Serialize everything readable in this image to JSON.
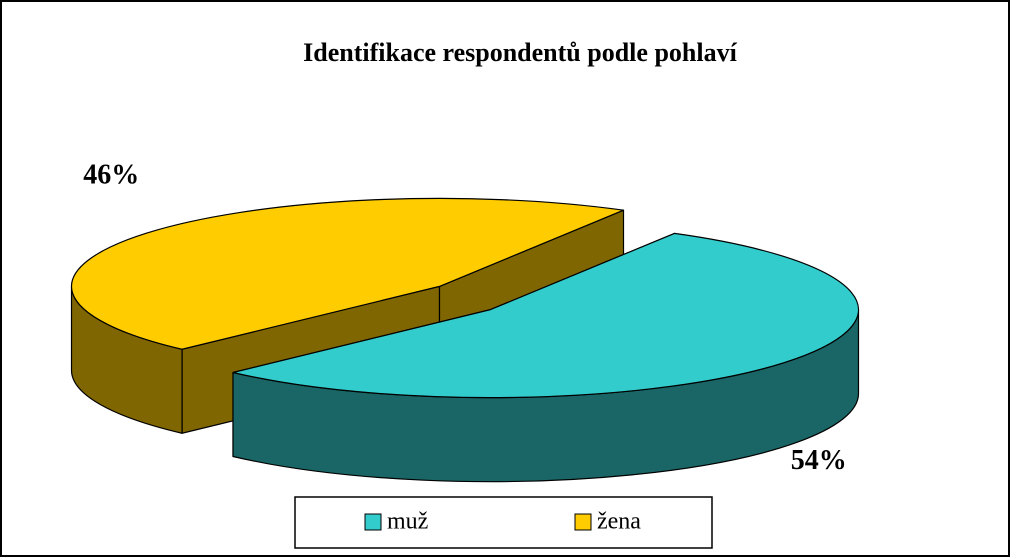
{
  "chart_data": {
    "type": "pie3d",
    "title": "Identifikace respondentů podle pohlaví",
    "series": [
      {
        "name": "muž",
        "color": "#33CCCC",
        "values": [
          54
        ],
        "value_labels": [
          "54%"
        ]
      },
      {
        "name": "žena",
        "color": "#FFCC00",
        "values": [
          46
        ],
        "value_labels": [
          "46%"
        ]
      }
    ],
    "legend": "bottom"
  }
}
